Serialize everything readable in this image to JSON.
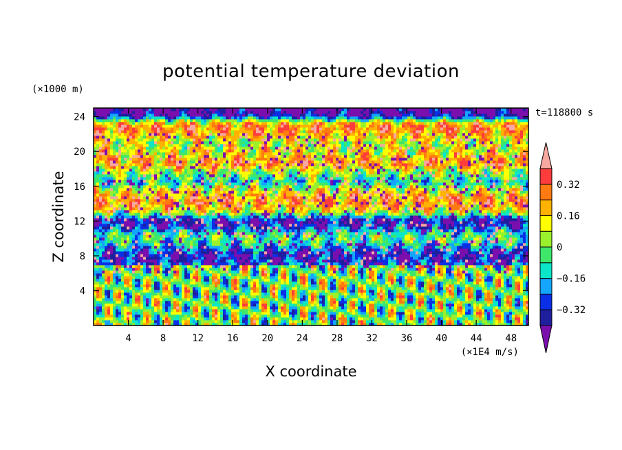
{
  "chart_data": {
    "type": "heatmap",
    "title": "potential temperature deviation",
    "xlabel": "X coordinate",
    "ylabel": "Z coordinate",
    "x_unit_label": "(×1E4 m/s)",
    "y_unit_label": "(×1000 m)",
    "time_label": "t=118800 s",
    "xlim": [
      0,
      50
    ],
    "ylim": [
      0,
      25
    ],
    "x_ticks": [
      "4",
      "8",
      "12",
      "16",
      "20",
      "24",
      "28",
      "32",
      "36",
      "40",
      "44",
      "48"
    ],
    "y_ticks": [
      "4",
      "8",
      "12",
      "16",
      "20",
      "24"
    ],
    "colorbar": {
      "levels": [
        -0.4,
        -0.32,
        -0.24,
        -0.16,
        -0.08,
        0,
        0.08,
        0.16,
        0.24,
        0.32,
        0.4
      ],
      "tick_labels": [
        "0.32",
        "0.16",
        "0",
        "−0.16",
        "−0.32"
      ],
      "tick_values": [
        0.32,
        0.16,
        0,
        -0.16,
        -0.32
      ],
      "colors_low_to_high": [
        "#7b0fae",
        "#1f1f9e",
        "#0a2fe6",
        "#14a6ff",
        "#0ce6c8",
        "#3ee66a",
        "#9af02c",
        "#ffff00",
        "#ffb200",
        "#ff7a10",
        "#ff3c3c",
        "#f7a8a0"
      ],
      "under_color": "#7b0fae",
      "over_color": "#f7a8a0",
      "extend": "both"
    }
  }
}
